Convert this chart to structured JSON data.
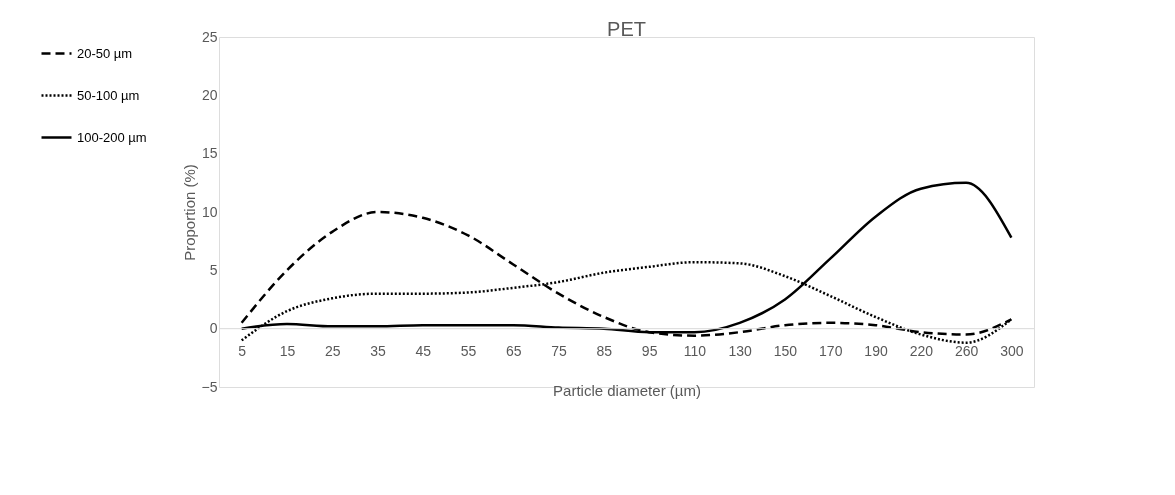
{
  "chart_data": {
    "type": "line",
    "title": "PET",
    "xlabel": "Particle diameter (µm)",
    "ylabel": "Proportion (%)",
    "categories": [
      "5",
      "15",
      "25",
      "35",
      "45",
      "55",
      "65",
      "75",
      "85",
      "95",
      "110",
      "130",
      "150",
      "170",
      "190",
      "220",
      "260",
      "300"
    ],
    "series": [
      {
        "name": "20-50 µm",
        "color": "#000000",
        "line_style": "dashed",
        "values": [
          0.5,
          5,
          8.3,
          10,
          9.5,
          8,
          5.5,
          3,
          1,
          -0.3,
          -0.6,
          -0.3,
          0.3,
          0.5,
          0.3,
          -0.3,
          -0.5,
          0.8
        ]
      },
      {
        "name": "50-100 µm",
        "color": "#000000",
        "line_style": "dotted",
        "values": [
          -1,
          1.5,
          2.6,
          3,
          3,
          3.1,
          3.5,
          4,
          4.8,
          5.3,
          5.7,
          5.6,
          4.5,
          2.8,
          1,
          -0.5,
          -1.2,
          0.8
        ]
      },
      {
        "name": "100-200 µm",
        "color": "#000000",
        "line_style": "solid",
        "values": [
          0,
          0.4,
          0.2,
          0.2,
          0.3,
          0.3,
          0.3,
          0.1,
          0,
          -0.3,
          -0.3,
          0.5,
          2.5,
          6,
          9.6,
          12,
          12.5,
          7.8
        ]
      }
    ],
    "ylim": [
      -5,
      25
    ],
    "yticks": [
      -5,
      0,
      5,
      10,
      15,
      20,
      25
    ],
    "grid": false,
    "legend": "left"
  }
}
